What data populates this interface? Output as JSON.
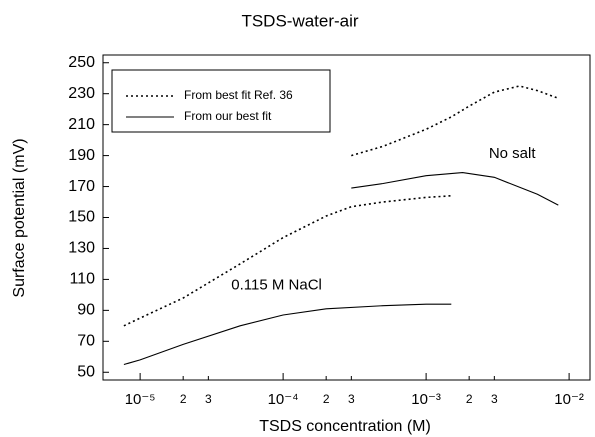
{
  "chart_data": {
    "type": "line",
    "title": "TSDS-water-air",
    "x_label": "TSDS concentration (M)",
    "y_label": "Surface potential (mV)",
    "xscale": "log",
    "xlim": [
      5.5e-06,
      0.014
    ],
    "ylim": [
      45,
      255
    ],
    "xticks": [
      {
        "value": 1e-05,
        "label": "10⁻⁵"
      },
      {
        "value": 2e-05,
        "label": "2"
      },
      {
        "value": 3e-05,
        "label": "3"
      },
      {
        "value": 0.0001,
        "label": "10⁻⁴"
      },
      {
        "value": 0.0002,
        "label": "2"
      },
      {
        "value": 0.0003,
        "label": "3"
      },
      {
        "value": 0.001,
        "label": "10⁻³"
      },
      {
        "value": 0.002,
        "label": "2"
      },
      {
        "value": 0.003,
        "label": "3"
      },
      {
        "value": 0.01,
        "label": "10⁻²"
      }
    ],
    "yticks": [
      50,
      70,
      90,
      110,
      130,
      150,
      170,
      190,
      210,
      230,
      250
    ],
    "color": "#000000",
    "legend_position": "upper left",
    "legend": [
      {
        "label": "From best fit Ref. 36",
        "style": "dotted"
      },
      {
        "label": "From our best fit",
        "style": "solid"
      }
    ],
    "series": [
      {
        "style": "dotted",
        "x": [
          0.0003,
          0.0005,
          0.001,
          0.0015,
          0.002,
          0.003,
          0.0045,
          0.006,
          0.0084
        ],
        "values": [
          190,
          196,
          207,
          215,
          222,
          231,
          235,
          232,
          227
        ]
      },
      {
        "style": "solid",
        "x": [
          0.0003,
          0.0005,
          0.001,
          0.0018,
          0.003,
          0.006,
          0.0084
        ],
        "values": [
          169,
          172,
          177,
          179,
          176,
          165,
          158
        ]
      },
      {
        "style": "dotted",
        "x": [
          7.7e-06,
          1e-05,
          2e-05,
          5e-05,
          0.0001,
          0.0002,
          0.0003,
          0.0005,
          0.001,
          0.0015
        ],
        "values": [
          80,
          85,
          98,
          120,
          137,
          151,
          157,
          160,
          163,
          164
        ]
      },
      {
        "style": "solid",
        "x": [
          7.7e-06,
          1e-05,
          2e-05,
          5e-05,
          0.0001,
          0.0002,
          0.0005,
          0.001,
          0.0015
        ],
        "values": [
          55,
          58,
          68,
          80,
          87,
          91,
          93,
          94,
          94
        ]
      }
    ],
    "annotations": [
      {
        "text": "No salt",
        "x": 0.004,
        "y": 191
      },
      {
        "text": "0.115 M NaCl",
        "x": 9e-05,
        "y": 106
      }
    ]
  }
}
